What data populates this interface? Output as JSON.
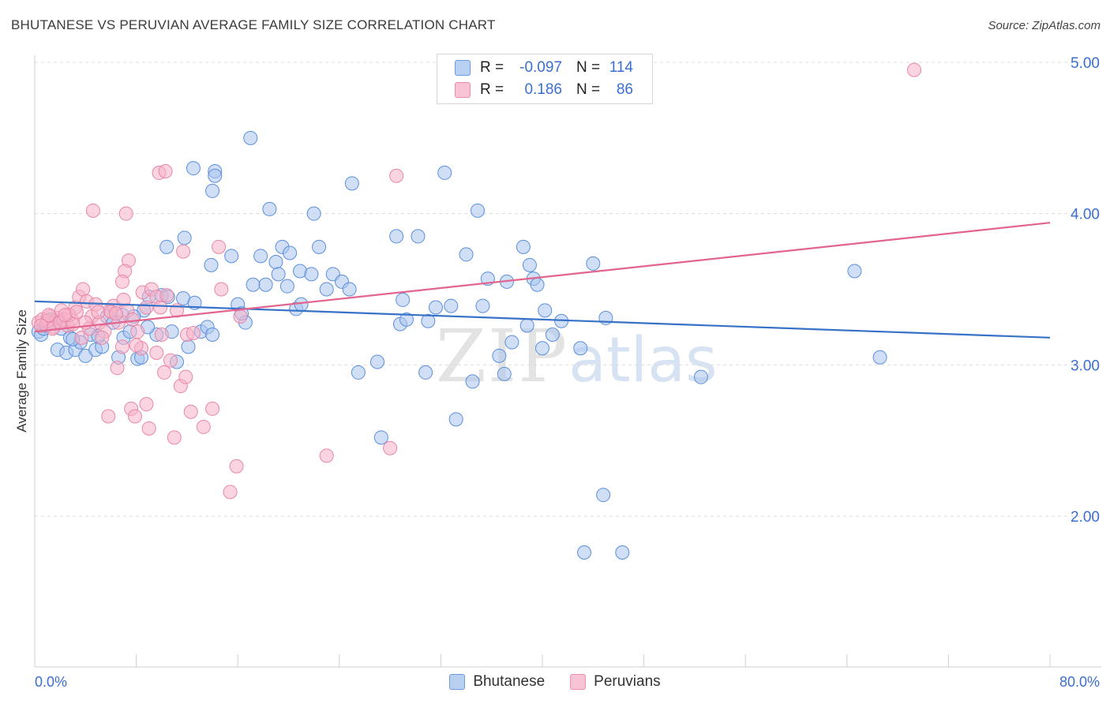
{
  "title": "BHUTANESE VS PERUVIAN AVERAGE FAMILY SIZE CORRELATION CHART",
  "source": "Source: ZipAtlas.com",
  "watermark": {
    "zip": "ZIP",
    "atlas": "atlas"
  },
  "legend_top": {
    "rows": [
      {
        "r_label": "R =",
        "r_value": "-0.097",
        "n_label": "N =",
        "n_value": "114",
        "fill": "#b8d0f2",
        "stroke": "#6c9be0"
      },
      {
        "r_label": "R =",
        "r_value": "0.186",
        "n_label": "N =",
        "n_value": "86",
        "fill": "#f8c3d4",
        "stroke": "#ea8fae"
      }
    ]
  },
  "legend_bottom": [
    "Bhutanese",
    "Peruvians"
  ],
  "colors": {
    "blue": "#3672c8",
    "pink": "#e2648f",
    "blue_fill": "#a9c5ef",
    "pink_fill": "#f5b3c8",
    "axis_text": "#3a6fd0"
  },
  "chart_data": {
    "type": "scatter",
    "title": "BHUTANESE VS PERUVIAN AVERAGE FAMILY SIZE CORRELATION CHART",
    "xlabel": "",
    "ylabel": "Average Family Size",
    "xlim": [
      0,
      80
    ],
    "ylim": [
      1.0,
      5.1
    ],
    "x_tick_labels": [
      "0.0%",
      "80.0%"
    ],
    "y_ticks": [
      2.0,
      3.0,
      4.0,
      5.0
    ],
    "y_tick_labels": [
      "2.00",
      "3.00",
      "4.00",
      "5.00"
    ],
    "grid": "horizontal dashed",
    "legend": "bottom-center",
    "series": [
      {
        "name": "Bhutanese",
        "color": "#3672c8",
        "trend": {
          "x": [
            0,
            80
          ],
          "y": [
            3.42,
            3.18
          ]
        },
        "points": [
          [
            0.3,
            3.22
          ],
          [
            0.5,
            3.2
          ],
          [
            0.7,
            3.24
          ],
          [
            0.9,
            3.26
          ],
          [
            1.2,
            3.3
          ],
          [
            1.5,
            3.28
          ],
          [
            1.8,
            3.1
          ],
          [
            2.1,
            3.24
          ],
          [
            2.5,
            3.08
          ],
          [
            2.8,
            3.18
          ],
          [
            3.2,
            3.1
          ],
          [
            3.6,
            3.15
          ],
          [
            4.0,
            3.06
          ],
          [
            4.4,
            3.2
          ],
          [
            4.8,
            3.1
          ],
          [
            5.3,
            3.12
          ],
          [
            5.7,
            3.32
          ],
          [
            6.2,
            3.28
          ],
          [
            6.6,
            3.05
          ],
          [
            7.0,
            3.18
          ],
          [
            7.5,
            3.22
          ],
          [
            8.1,
            3.04
          ],
          [
            8.6,
            3.36
          ],
          [
            9.0,
            3.45
          ],
          [
            9.6,
            3.2
          ],
          [
            10.0,
            3.46
          ],
          [
            10.5,
            3.45
          ],
          [
            10.8,
            3.22
          ],
          [
            11.2,
            3.02
          ],
          [
            11.7,
            3.44
          ],
          [
            12.1,
            3.12
          ],
          [
            12.6,
            3.41
          ],
          [
            13.1,
            3.22
          ],
          [
            13.6,
            3.25
          ],
          [
            14.0,
            3.2
          ],
          [
            7.8,
            3.32
          ],
          [
            8.9,
            3.25
          ],
          [
            6.9,
            3.33
          ],
          [
            5.0,
            3.19
          ],
          [
            3.0,
            3.17
          ],
          [
            10.4,
            3.78
          ],
          [
            11.8,
            3.84
          ],
          [
            12.5,
            4.3
          ],
          [
            14.2,
            4.28
          ],
          [
            14.0,
            4.15
          ],
          [
            14.2,
            4.25
          ],
          [
            13.9,
            3.66
          ],
          [
            15.5,
            3.72
          ],
          [
            16.0,
            3.4
          ],
          [
            16.6,
            3.28
          ],
          [
            16.3,
            3.34
          ],
          [
            17.0,
            4.5
          ],
          [
            17.2,
            3.53
          ],
          [
            17.8,
            3.72
          ],
          [
            18.2,
            3.53
          ],
          [
            18.5,
            4.03
          ],
          [
            19.0,
            3.68
          ],
          [
            19.2,
            3.6
          ],
          [
            19.5,
            3.78
          ],
          [
            19.9,
            3.52
          ],
          [
            20.1,
            3.74
          ],
          [
            20.6,
            3.37
          ],
          [
            20.9,
            3.62
          ],
          [
            21.0,
            3.4
          ],
          [
            21.8,
            3.6
          ],
          [
            22.0,
            4.0
          ],
          [
            22.4,
            3.78
          ],
          [
            23.0,
            3.5
          ],
          [
            23.5,
            3.6
          ],
          [
            24.2,
            3.55
          ],
          [
            24.8,
            3.5
          ],
          [
            25.0,
            4.2
          ],
          [
            25.5,
            2.95
          ],
          [
            27.0,
            3.02
          ],
          [
            27.3,
            2.52
          ],
          [
            28.5,
            3.85
          ],
          [
            28.8,
            3.27
          ],
          [
            29.0,
            3.43
          ],
          [
            29.3,
            3.3
          ],
          [
            30.2,
            3.85
          ],
          [
            30.8,
            2.95
          ],
          [
            31.0,
            3.29
          ],
          [
            31.6,
            3.38
          ],
          [
            32.3,
            4.27
          ],
          [
            32.8,
            3.39
          ],
          [
            33.2,
            2.64
          ],
          [
            34.0,
            3.73
          ],
          [
            34.5,
            2.89
          ],
          [
            34.9,
            4.02
          ],
          [
            35.3,
            3.39
          ],
          [
            35.7,
            3.57
          ],
          [
            36.6,
            3.06
          ],
          [
            37.0,
            2.94
          ],
          [
            37.2,
            3.55
          ],
          [
            37.6,
            3.15
          ],
          [
            38.5,
            3.78
          ],
          [
            38.8,
            3.26
          ],
          [
            39.0,
            3.66
          ],
          [
            39.3,
            3.57
          ],
          [
            39.6,
            3.53
          ],
          [
            40.0,
            3.11
          ],
          [
            40.2,
            3.36
          ],
          [
            40.8,
            3.2
          ],
          [
            41.5,
            3.29
          ],
          [
            43.0,
            3.11
          ],
          [
            44.0,
            3.67
          ],
          [
            44.8,
            2.14
          ],
          [
            45.0,
            3.31
          ],
          [
            43.3,
            1.76
          ],
          [
            46.3,
            1.76
          ],
          [
            64.6,
            3.62
          ],
          [
            66.6,
            3.05
          ],
          [
            52.5,
            2.92
          ],
          [
            8.4,
            3.05
          ]
        ]
      },
      {
        "name": "Peruvians",
        "color": "#e2648f",
        "trend": {
          "x": [
            0,
            80
          ],
          "y": [
            3.22,
            3.94
          ]
        },
        "points": [
          [
            0.3,
            3.28
          ],
          [
            0.6,
            3.3
          ],
          [
            0.9,
            3.27
          ],
          [
            1.2,
            3.32
          ],
          [
            1.5,
            3.25
          ],
          [
            1.8,
            3.31
          ],
          [
            2.1,
            3.36
          ],
          [
            2.3,
            3.3
          ],
          [
            2.6,
            3.26
          ],
          [
            2.9,
            3.3
          ],
          [
            3.2,
            3.38
          ],
          [
            3.5,
            3.45
          ],
          [
            3.8,
            3.5
          ],
          [
            4.1,
            3.42
          ],
          [
            4.5,
            3.32
          ],
          [
            4.8,
            3.4
          ],
          [
            5.1,
            3.28
          ],
          [
            5.5,
            3.22
          ],
          [
            5.9,
            3.36
          ],
          [
            6.2,
            3.39
          ],
          [
            6.6,
            3.28
          ],
          [
            7.0,
            3.43
          ],
          [
            7.3,
            3.36
          ],
          [
            7.7,
            3.3
          ],
          [
            8.1,
            3.22
          ],
          [
            8.5,
            3.48
          ],
          [
            8.8,
            3.38
          ],
          [
            9.2,
            3.5
          ],
          [
            9.6,
            3.45
          ],
          [
            10.0,
            3.2
          ],
          [
            3.7,
            3.18
          ],
          [
            4.3,
            3.24
          ],
          [
            5.3,
            3.18
          ],
          [
            5.8,
            2.66
          ],
          [
            6.5,
            2.98
          ],
          [
            6.9,
            3.12
          ],
          [
            7.6,
            2.71
          ],
          [
            7.9,
            2.66
          ],
          [
            8.4,
            3.11
          ],
          [
            8.8,
            2.74
          ],
          [
            9.0,
            2.58
          ],
          [
            9.6,
            3.08
          ],
          [
            9.9,
            3.38
          ],
          [
            10.2,
            2.95
          ],
          [
            10.7,
            3.03
          ],
          [
            11.0,
            2.52
          ],
          [
            11.5,
            2.86
          ],
          [
            11.9,
            2.92
          ],
          [
            12.3,
            2.69
          ],
          [
            12.0,
            3.2
          ],
          [
            13.3,
            2.59
          ],
          [
            14.0,
            2.71
          ],
          [
            14.7,
            3.5
          ],
          [
            15.4,
            2.16
          ],
          [
            15.9,
            2.33
          ],
          [
            16.2,
            3.32
          ],
          [
            14.5,
            3.78
          ],
          [
            11.7,
            3.75
          ],
          [
            9.8,
            4.27
          ],
          [
            10.3,
            4.28
          ],
          [
            7.4,
            3.69
          ],
          [
            7.1,
            3.62
          ],
          [
            6.9,
            3.55
          ],
          [
            7.2,
            4.0
          ],
          [
            4.6,
            4.02
          ],
          [
            23.0,
            2.4
          ],
          [
            28.0,
            2.45
          ],
          [
            28.5,
            4.25
          ],
          [
            1.0,
            3.29
          ],
          [
            1.4,
            3.24
          ],
          [
            2.0,
            3.28
          ],
          [
            2.7,
            3.33
          ],
          [
            0.5,
            3.26
          ],
          [
            1.1,
            3.33
          ],
          [
            5.0,
            3.35
          ],
          [
            6.0,
            3.35
          ],
          [
            8.0,
            3.13
          ],
          [
            10.4,
            3.46
          ],
          [
            11.2,
            3.36
          ],
          [
            12.5,
            3.21
          ],
          [
            4.0,
            3.28
          ],
          [
            3.0,
            3.27
          ],
          [
            2.4,
            3.33
          ],
          [
            6.4,
            3.34
          ],
          [
            3.3,
            3.35
          ],
          [
            69.3,
            4.95
          ]
        ]
      }
    ]
  }
}
